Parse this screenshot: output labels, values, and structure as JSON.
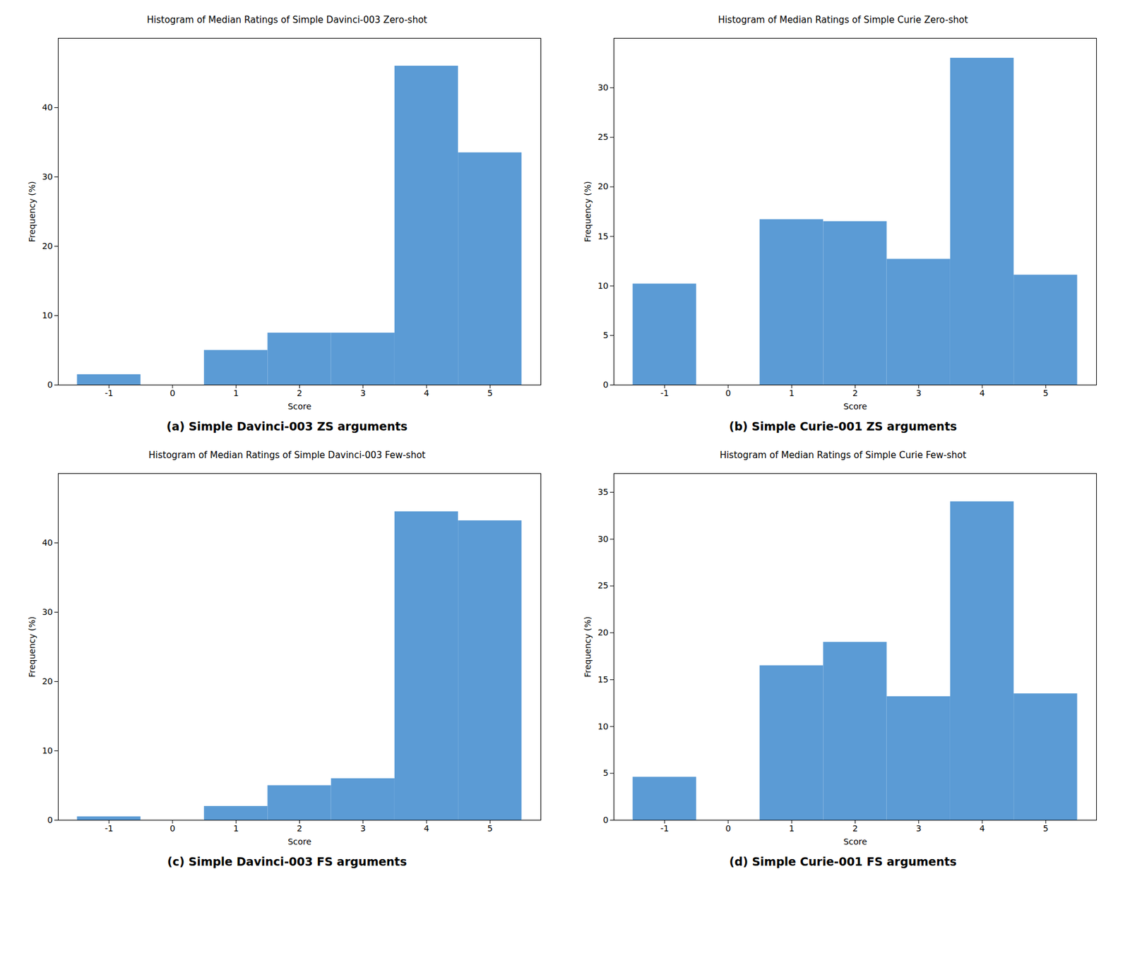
{
  "chart_data": [
    {
      "type": "bar",
      "title": "Histogram of Median Ratings of Simple Davinci-003 Zero-shot",
      "caption": "(a) Simple Davinci-003 ZS arguments",
      "xlabel": "Score",
      "ylabel": "Frequency (%)",
      "x": [
        -1,
        0,
        1,
        2,
        3,
        4,
        5
      ],
      "values": [
        1.5,
        0.0,
        5.0,
        7.5,
        7.5,
        46.0,
        33.5
      ],
      "color": "#5b9bd5",
      "xlim": [
        -1.8,
        5.8
      ],
      "xticks": [
        -1,
        0,
        1,
        2,
        3,
        4,
        5
      ],
      "ylim": [
        0,
        50
      ],
      "yticks": [
        0,
        10,
        20,
        30,
        40
      ],
      "grid": false
    },
    {
      "type": "bar",
      "title": "Histogram of Median Ratings of Simple Curie Zero-shot",
      "caption": "(b) Simple Curie-001 ZS arguments",
      "xlabel": "Score",
      "ylabel": "Frequency (%)",
      "x": [
        -1,
        0,
        1,
        2,
        3,
        4,
        5
      ],
      "values": [
        10.2,
        0.0,
        16.7,
        16.5,
        12.7,
        33.0,
        11.1
      ],
      "color": "#5b9bd5",
      "xlim": [
        -1.8,
        5.8
      ],
      "xticks": [
        -1,
        0,
        1,
        2,
        3,
        4,
        5
      ],
      "ylim": [
        0,
        35
      ],
      "yticks": [
        0,
        5,
        10,
        15,
        20,
        25,
        30
      ],
      "grid": false
    },
    {
      "type": "bar",
      "title": "Histogram of Median Ratings of Simple Davinci-003 Few-shot",
      "caption": "(c) Simple Davinci-003 FS arguments",
      "xlabel": "Score",
      "ylabel": "Frequency (%)",
      "x": [
        -1,
        0,
        1,
        2,
        3,
        4,
        5
      ],
      "values": [
        0.5,
        0.0,
        2.0,
        5.0,
        6.0,
        44.5,
        43.2
      ],
      "color": "#5b9bd5",
      "xlim": [
        -1.8,
        5.8
      ],
      "xticks": [
        -1,
        0,
        1,
        2,
        3,
        4,
        5
      ],
      "ylim": [
        0,
        50
      ],
      "yticks": [
        0,
        10,
        20,
        30,
        40
      ],
      "grid": false
    },
    {
      "type": "bar",
      "title": "Histogram of Median Ratings of Simple Curie Few-shot",
      "caption": "(d) Simple Curie-001 FS arguments",
      "xlabel": "Score",
      "ylabel": "Frequency (%)",
      "x": [
        -1,
        0,
        1,
        2,
        3,
        4,
        5
      ],
      "values": [
        4.6,
        0.0,
        16.5,
        19.0,
        13.2,
        34.0,
        13.5
      ],
      "color": "#5b9bd5",
      "xlim": [
        -1.8,
        5.8
      ],
      "xticks": [
        -1,
        0,
        1,
        2,
        3,
        4,
        5
      ],
      "ylim": [
        0,
        37
      ],
      "yticks": [
        0,
        5,
        10,
        15,
        20,
        25,
        30,
        35
      ],
      "grid": false
    }
  ]
}
